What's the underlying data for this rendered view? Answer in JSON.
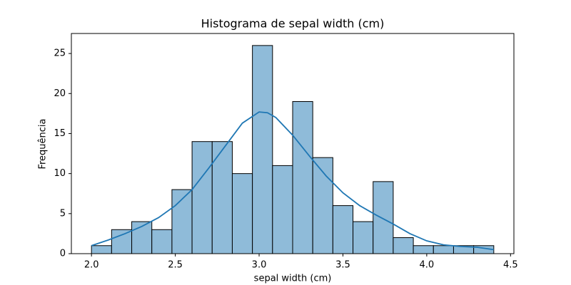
{
  "chart_data": {
    "type": "histogram",
    "title": "Histograma de sepal width (cm)",
    "xlabel": "sepal width (cm)",
    "ylabel": "Frequência",
    "bins": [
      2.0,
      2.12,
      2.24,
      2.36,
      2.48,
      2.6,
      2.72,
      2.84,
      2.96,
      3.08,
      3.2,
      3.32,
      3.44,
      3.56,
      3.68,
      3.8,
      3.92,
      4.04,
      4.16,
      4.28,
      4.4
    ],
    "values": [
      1,
      3,
      4,
      3,
      8,
      14,
      14,
      10,
      26,
      11,
      19,
      12,
      6,
      4,
      9,
      2,
      1,
      1,
      1,
      1
    ],
    "color": "#8fbbd9",
    "edgecolor": "#000000",
    "kde": {
      "color": "#1f77b4",
      "x": [
        2.0,
        2.1,
        2.2,
        2.3,
        2.4,
        2.5,
        2.6,
        2.7,
        2.8,
        2.9,
        3.0,
        3.05,
        3.1,
        3.2,
        3.3,
        3.4,
        3.5,
        3.6,
        3.7,
        3.8,
        3.9,
        4.0,
        4.1,
        4.2,
        4.3,
        4.4
      ],
      "values": [
        1.0,
        1.7,
        2.5,
        3.4,
        4.5,
        6.0,
        8.0,
        10.7,
        13.5,
        16.3,
        17.7,
        17.6,
        17.0,
        14.8,
        12.2,
        9.7,
        7.6,
        6.0,
        4.8,
        3.7,
        2.5,
        1.6,
        1.1,
        0.9,
        0.8,
        0.5
      ]
    },
    "xlim": [
      1.88,
      4.52
    ],
    "ylim": [
      0,
      27.5
    ],
    "xticks": [
      {
        "value": 2.0,
        "label": "2.0"
      },
      2.5,
      {
        "value": 3.0,
        "label": "3.0"
      },
      3.5,
      {
        "value": 4.0,
        "label": "4.0"
      },
      4.5
    ],
    "yticks": [
      0,
      5,
      10,
      15,
      20,
      25
    ],
    "grid": false
  }
}
